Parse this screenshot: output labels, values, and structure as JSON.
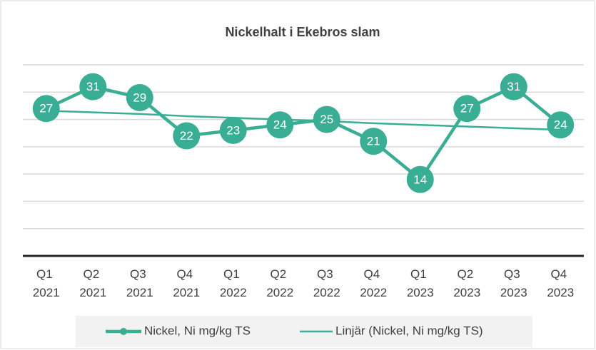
{
  "chart_data": {
    "type": "line",
    "title": "Nickelhalt i Ekebros slam",
    "categories": [
      "Q1 2021",
      "Q2 2021",
      "Q3 2021",
      "Q4 2021",
      "Q1 2022",
      "Q2 2022",
      "Q3 2022",
      "Q4 2022",
      "Q1 2023",
      "Q2 2023",
      "Q3 2023",
      "Q4 2023"
    ],
    "series": [
      {
        "name": "Nickel, Ni mg/kg TS",
        "color": "#3aae94",
        "values": [
          27,
          31,
          29,
          22,
          23,
          24,
          25,
          21,
          14,
          27,
          31,
          24
        ]
      },
      {
        "name": "Linjär (Nickel, Ni mg/kg TS)",
        "color": "#3aae94",
        "values": [
          26.6,
          26.3,
          26.0,
          25.6,
          25.3,
          25.0,
          24.7,
          24.3,
          24.0,
          23.7,
          23.4,
          23.1
        ]
      }
    ],
    "ylim": [
      0,
      35
    ],
    "yticks": [
      0,
      5,
      10,
      15,
      20,
      25,
      30,
      35
    ],
    "grid": true
  }
}
